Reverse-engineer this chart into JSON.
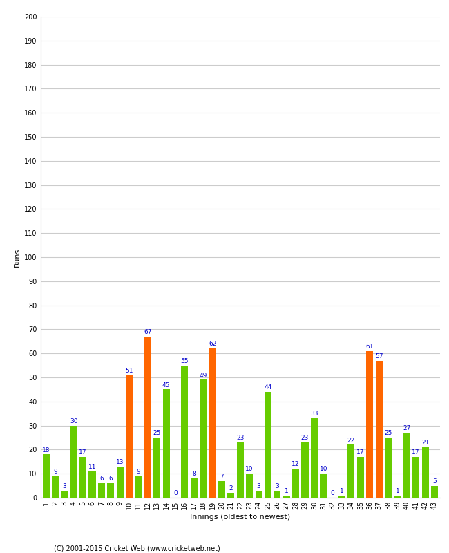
{
  "xlabel": "Innings (oldest to newest)",
  "ylabel": "Runs",
  "footer": "(C) 2001-2015 Cricket Web (www.cricketweb.net)",
  "ylim": [
    0,
    200
  ],
  "yticks": [
    0,
    10,
    20,
    30,
    40,
    50,
    60,
    70,
    80,
    90,
    100,
    110,
    120,
    130,
    140,
    150,
    160,
    170,
    180,
    190,
    200
  ],
  "innings": [
    1,
    2,
    3,
    4,
    5,
    6,
    7,
    8,
    9,
    10,
    11,
    12,
    13,
    14,
    15,
    16,
    17,
    18,
    19,
    20,
    21,
    22,
    23,
    24,
    25,
    26,
    27,
    28,
    29,
    30,
    31,
    32,
    33,
    34,
    35,
    36,
    37,
    38,
    39,
    40,
    41,
    42,
    43
  ],
  "values": [
    18,
    9,
    3,
    30,
    17,
    11,
    6,
    6,
    13,
    51,
    9,
    67,
    25,
    45,
    0,
    55,
    8,
    49,
    62,
    7,
    2,
    23,
    10,
    3,
    44,
    3,
    1,
    12,
    23,
    33,
    10,
    0,
    1,
    22,
    17,
    61,
    57,
    25,
    1,
    27,
    17,
    21,
    5
  ],
  "colors": [
    "green",
    "green",
    "green",
    "green",
    "green",
    "green",
    "green",
    "green",
    "green",
    "orange",
    "green",
    "orange",
    "green",
    "green",
    "green",
    "green",
    "green",
    "green",
    "orange",
    "green",
    "green",
    "green",
    "green",
    "green",
    "green",
    "green",
    "green",
    "green",
    "green",
    "green",
    "green",
    "green",
    "green",
    "green",
    "green",
    "orange",
    "orange",
    "green",
    "green",
    "green",
    "green",
    "green",
    "green"
  ],
  "green_color": "#66cc00",
  "orange_color": "#ff6600",
  "bg_color": "#ffffff",
  "grid_color": "#cccccc",
  "label_color": "#0000cc",
  "label_fontsize": 6.5,
  "tick_label_fontsize": 7,
  "axis_label_fontsize": 8,
  "title_fontsize": 10,
  "bar_width": 0.75
}
